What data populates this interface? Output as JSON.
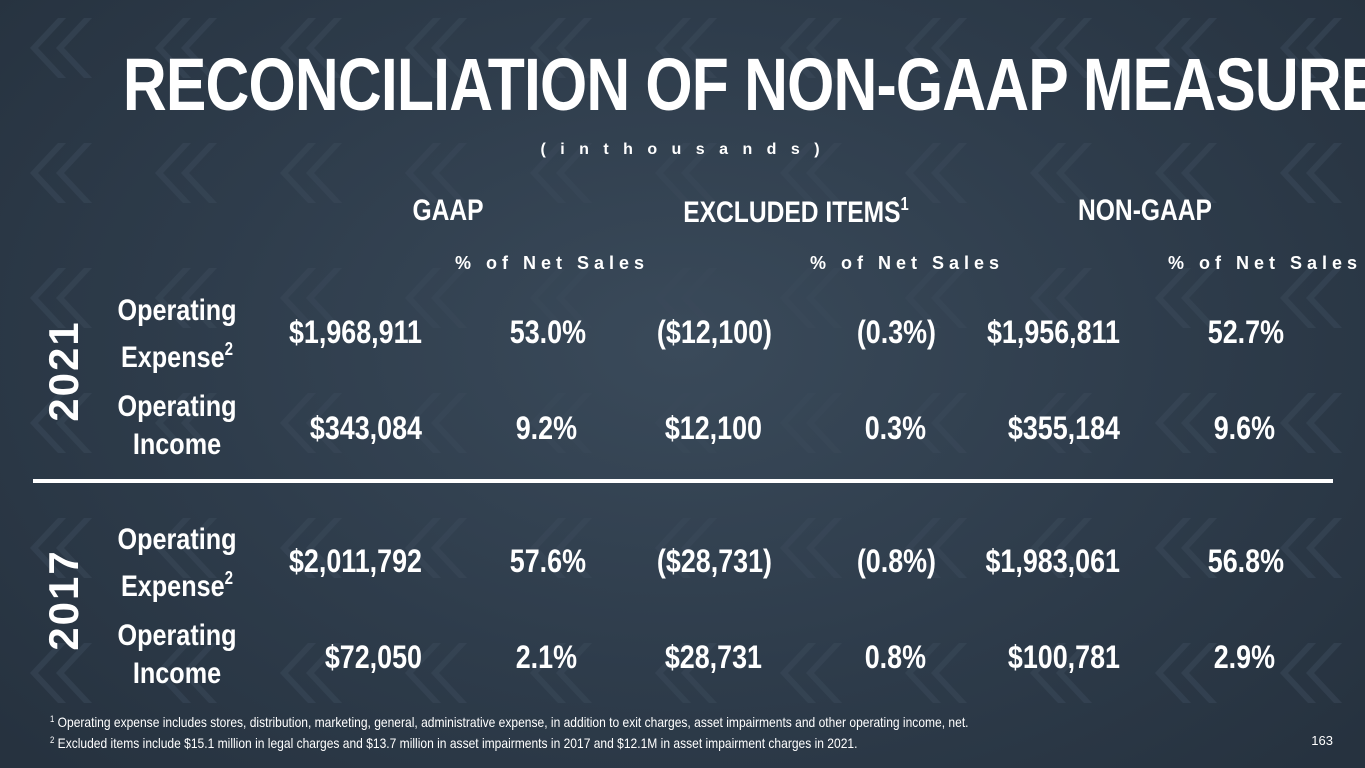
{
  "title": "RECONCILIATION OF NON-GAAP MEASURES",
  "subtitle": "( i n  t h o u s a n d s )",
  "columns": {
    "gaap": "GAAP",
    "excluded": "EXCLUDED ITEMS",
    "excluded_sup": "1",
    "non_gaap": "NON-GAAP",
    "pct_label": "% of Net Sales"
  },
  "sections": [
    {
      "year": "2021",
      "rows": [
        {
          "label1": "Operating",
          "label2": "Expense",
          "sup": "2",
          "gaap": "$1,968,911",
          "gaap_pct": "53.0%",
          "excl": "($12,100)",
          "excl_pct": "(0.3%)",
          "non": "$1,956,811",
          "non_pct": "52.7%"
        },
        {
          "label1": "Operating",
          "label2": "Income",
          "sup": "",
          "gaap": "$343,084",
          "gaap_pct": "9.2%",
          "excl": "$12,100",
          "excl_pct": "0.3%",
          "non": "$355,184",
          "non_pct": "9.6%"
        }
      ]
    },
    {
      "year": "2017",
      "rows": [
        {
          "label1": "Operating",
          "label2": "Expense",
          "sup": "2",
          "gaap": "$2,011,792",
          "gaap_pct": "57.6%",
          "excl": "($28,731)",
          "excl_pct": "(0.8%)",
          "non": "$1,983,061",
          "non_pct": "56.8%"
        },
        {
          "label1": "Operating",
          "label2": "Income",
          "sup": "",
          "gaap": "$72,050",
          "gaap_pct": "2.1%",
          "excl": "$28,731",
          "excl_pct": "0.8%",
          "non": "$100,781",
          "non_pct": "2.9%"
        }
      ]
    }
  ],
  "footnotes": [
    {
      "num": "1",
      "text": "Operating expense includes stores, distribution, marketing, general, administrative expense, in addition to exit charges, asset impairments and other operating income, net."
    },
    {
      "num": "2",
      "text": "Excluded items include $15.1 million in legal charges and $13.7 million in asset impairments in 2017 and $12.1M in asset impairment charges in 2021."
    }
  ],
  "page_number": "163",
  "colors": {
    "background": "#2c3a48",
    "text": "#ffffff",
    "chevron": "#3b4a59"
  }
}
